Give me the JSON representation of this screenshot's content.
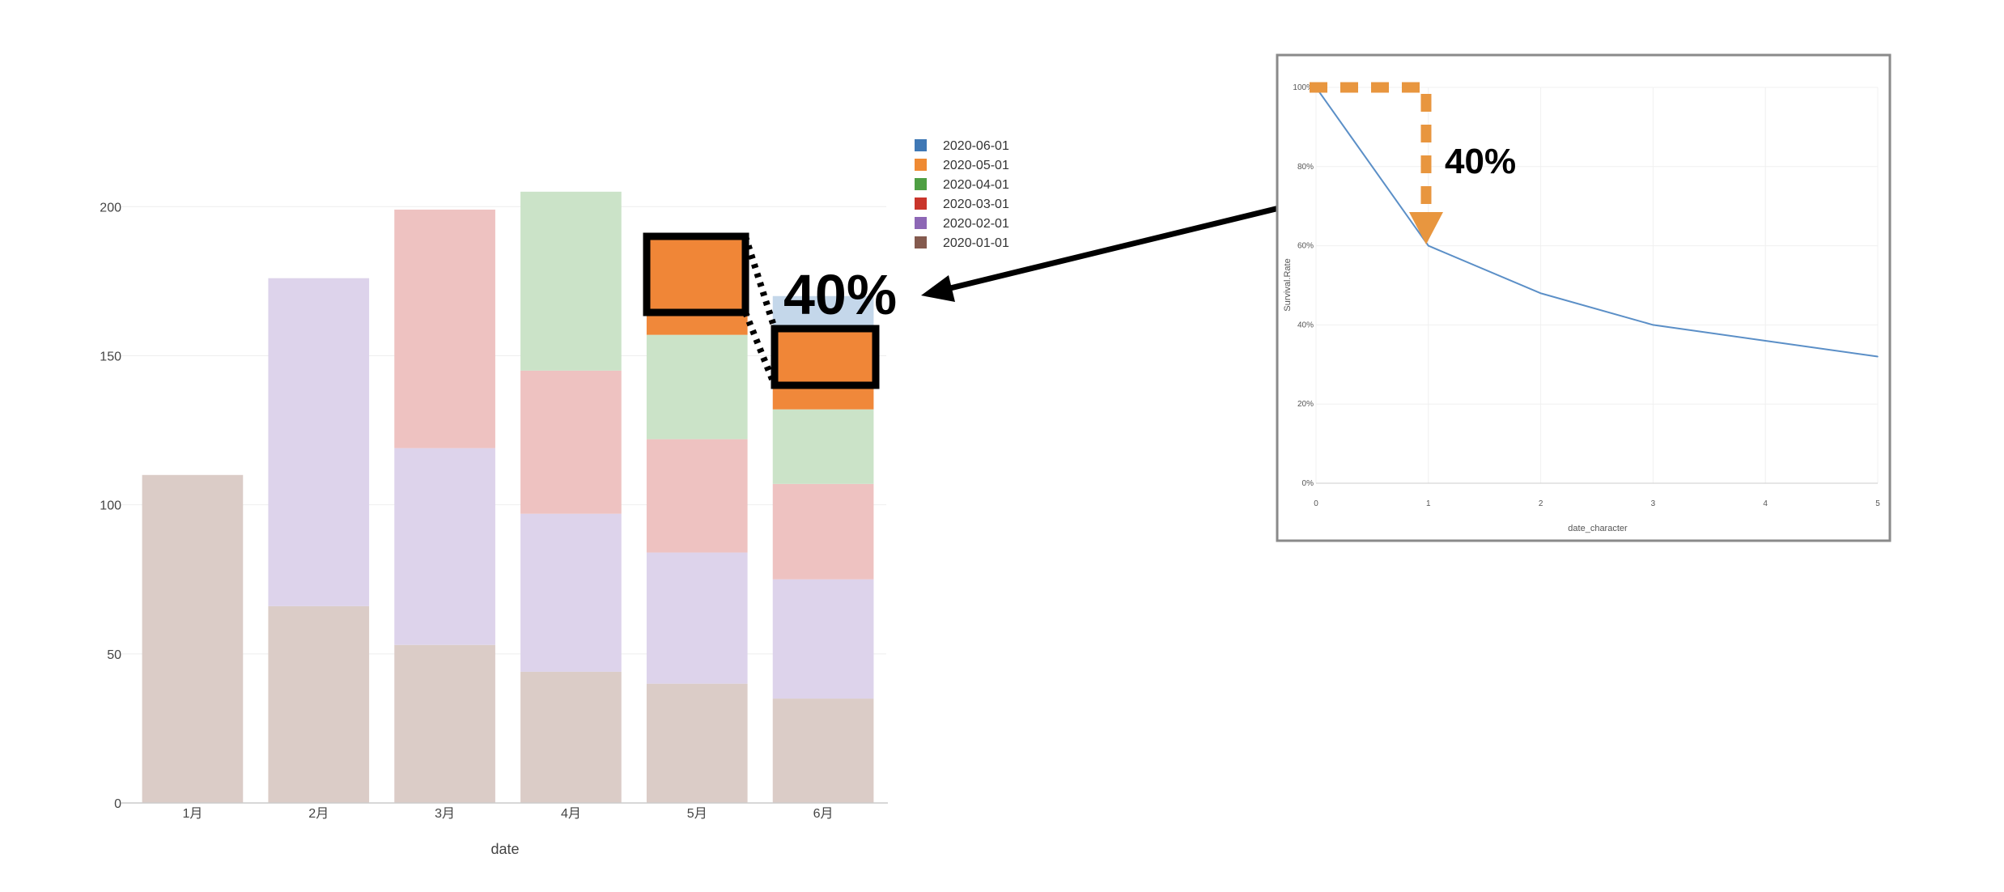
{
  "chart_data": [
    {
      "type": "bar",
      "stacked": true,
      "categories": [
        "1月",
        "2月",
        "3月",
        "4月",
        "5月",
        "6月"
      ],
      "xlabel": "date",
      "ylim": [
        0,
        215
      ],
      "yticks": [
        0,
        50,
        100,
        150,
        200
      ],
      "grid": true,
      "legend_position": "right",
      "series": [
        {
          "name": "2020-01-01",
          "color": "#dbccc7",
          "values": [
            110,
            66,
            53,
            44,
            40,
            35
          ]
        },
        {
          "name": "2020-02-01",
          "color": "#ddd3eb",
          "values": [
            0,
            110,
            66,
            53,
            44,
            40
          ]
        },
        {
          "name": "2020-03-01",
          "color": "#eec2c1",
          "values": [
            0,
            0,
            80,
            48,
            38,
            32
          ]
        },
        {
          "name": "2020-04-01",
          "color": "#cbe3c8",
          "values": [
            0,
            0,
            0,
            60,
            35,
            25
          ]
        },
        {
          "name": "2020-05-01",
          "color": "#f0883a",
          "values": [
            0,
            0,
            0,
            0,
            26,
            18
          ]
        },
        {
          "name": "2020-06-01",
          "color": "#c4d7ea",
          "values": [
            0,
            0,
            0,
            0,
            0,
            20
          ]
        }
      ],
      "legend_colors": [
        "#3f78b5",
        "#ef8a33",
        "#4e9f43",
        "#c9352b",
        "#8d67b5",
        "#845a4e"
      ]
    },
    {
      "type": "line",
      "x": [
        0,
        1,
        2,
        3,
        4,
        5
      ],
      "y": [
        100,
        60,
        48,
        40,
        36,
        32
      ],
      "xlabel": "date_character",
      "ylabel": "Survival.Rate",
      "xlim": [
        0,
        5
      ],
      "ylim": [
        0,
        100
      ],
      "xticks": [
        "0",
        "1",
        "2",
        "3",
        "4",
        "5"
      ],
      "yticks": [
        "0%",
        "20%",
        "40%",
        "60%",
        "80%",
        "100%"
      ],
      "color": "#5b8fc7",
      "grid": true
    }
  ],
  "annotations": {
    "bar_label": "40%",
    "line_label": "40%",
    "highlight_color": "#f08637",
    "arrow_color": "#e8963f"
  }
}
